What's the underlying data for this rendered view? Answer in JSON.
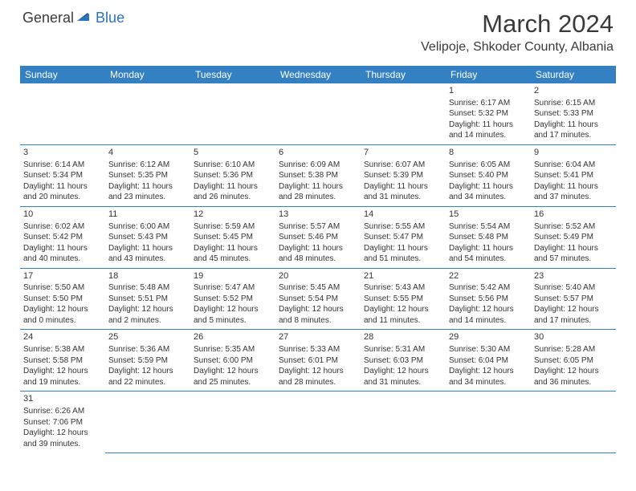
{
  "logo": {
    "text_general": "General",
    "text_blue": "Blue",
    "triangle_color": "#2b73b8"
  },
  "header": {
    "month_title": "March 2024",
    "location": "Velipoje, Shkoder County, Albania"
  },
  "colors": {
    "header_bg": "#3380c2",
    "header_text": "#ffffff",
    "body_text": "#333333",
    "rule": "#3380c2"
  },
  "weekdays": [
    "Sunday",
    "Monday",
    "Tuesday",
    "Wednesday",
    "Thursday",
    "Friday",
    "Saturday"
  ],
  "weeks": [
    [
      null,
      null,
      null,
      null,
      null,
      {
        "n": "1",
        "sr": "Sunrise: 6:17 AM",
        "ss": "Sunset: 5:32 PM",
        "d1": "Daylight: 11 hours",
        "d2": "and 14 minutes."
      },
      {
        "n": "2",
        "sr": "Sunrise: 6:15 AM",
        "ss": "Sunset: 5:33 PM",
        "d1": "Daylight: 11 hours",
        "d2": "and 17 minutes."
      }
    ],
    [
      {
        "n": "3",
        "sr": "Sunrise: 6:14 AM",
        "ss": "Sunset: 5:34 PM",
        "d1": "Daylight: 11 hours",
        "d2": "and 20 minutes."
      },
      {
        "n": "4",
        "sr": "Sunrise: 6:12 AM",
        "ss": "Sunset: 5:35 PM",
        "d1": "Daylight: 11 hours",
        "d2": "and 23 minutes."
      },
      {
        "n": "5",
        "sr": "Sunrise: 6:10 AM",
        "ss": "Sunset: 5:36 PM",
        "d1": "Daylight: 11 hours",
        "d2": "and 26 minutes."
      },
      {
        "n": "6",
        "sr": "Sunrise: 6:09 AM",
        "ss": "Sunset: 5:38 PM",
        "d1": "Daylight: 11 hours",
        "d2": "and 28 minutes."
      },
      {
        "n": "7",
        "sr": "Sunrise: 6:07 AM",
        "ss": "Sunset: 5:39 PM",
        "d1": "Daylight: 11 hours",
        "d2": "and 31 minutes."
      },
      {
        "n": "8",
        "sr": "Sunrise: 6:05 AM",
        "ss": "Sunset: 5:40 PM",
        "d1": "Daylight: 11 hours",
        "d2": "and 34 minutes."
      },
      {
        "n": "9",
        "sr": "Sunrise: 6:04 AM",
        "ss": "Sunset: 5:41 PM",
        "d1": "Daylight: 11 hours",
        "d2": "and 37 minutes."
      }
    ],
    [
      {
        "n": "10",
        "sr": "Sunrise: 6:02 AM",
        "ss": "Sunset: 5:42 PM",
        "d1": "Daylight: 11 hours",
        "d2": "and 40 minutes."
      },
      {
        "n": "11",
        "sr": "Sunrise: 6:00 AM",
        "ss": "Sunset: 5:43 PM",
        "d1": "Daylight: 11 hours",
        "d2": "and 43 minutes."
      },
      {
        "n": "12",
        "sr": "Sunrise: 5:59 AM",
        "ss": "Sunset: 5:45 PM",
        "d1": "Daylight: 11 hours",
        "d2": "and 45 minutes."
      },
      {
        "n": "13",
        "sr": "Sunrise: 5:57 AM",
        "ss": "Sunset: 5:46 PM",
        "d1": "Daylight: 11 hours",
        "d2": "and 48 minutes."
      },
      {
        "n": "14",
        "sr": "Sunrise: 5:55 AM",
        "ss": "Sunset: 5:47 PM",
        "d1": "Daylight: 11 hours",
        "d2": "and 51 minutes."
      },
      {
        "n": "15",
        "sr": "Sunrise: 5:54 AM",
        "ss": "Sunset: 5:48 PM",
        "d1": "Daylight: 11 hours",
        "d2": "and 54 minutes."
      },
      {
        "n": "16",
        "sr": "Sunrise: 5:52 AM",
        "ss": "Sunset: 5:49 PM",
        "d1": "Daylight: 11 hours",
        "d2": "and 57 minutes."
      }
    ],
    [
      {
        "n": "17",
        "sr": "Sunrise: 5:50 AM",
        "ss": "Sunset: 5:50 PM",
        "d1": "Daylight: 12 hours",
        "d2": "and 0 minutes."
      },
      {
        "n": "18",
        "sr": "Sunrise: 5:48 AM",
        "ss": "Sunset: 5:51 PM",
        "d1": "Daylight: 12 hours",
        "d2": "and 2 minutes."
      },
      {
        "n": "19",
        "sr": "Sunrise: 5:47 AM",
        "ss": "Sunset: 5:52 PM",
        "d1": "Daylight: 12 hours",
        "d2": "and 5 minutes."
      },
      {
        "n": "20",
        "sr": "Sunrise: 5:45 AM",
        "ss": "Sunset: 5:54 PM",
        "d1": "Daylight: 12 hours",
        "d2": "and 8 minutes."
      },
      {
        "n": "21",
        "sr": "Sunrise: 5:43 AM",
        "ss": "Sunset: 5:55 PM",
        "d1": "Daylight: 12 hours",
        "d2": "and 11 minutes."
      },
      {
        "n": "22",
        "sr": "Sunrise: 5:42 AM",
        "ss": "Sunset: 5:56 PM",
        "d1": "Daylight: 12 hours",
        "d2": "and 14 minutes."
      },
      {
        "n": "23",
        "sr": "Sunrise: 5:40 AM",
        "ss": "Sunset: 5:57 PM",
        "d1": "Daylight: 12 hours",
        "d2": "and 17 minutes."
      }
    ],
    [
      {
        "n": "24",
        "sr": "Sunrise: 5:38 AM",
        "ss": "Sunset: 5:58 PM",
        "d1": "Daylight: 12 hours",
        "d2": "and 19 minutes."
      },
      {
        "n": "25",
        "sr": "Sunrise: 5:36 AM",
        "ss": "Sunset: 5:59 PM",
        "d1": "Daylight: 12 hours",
        "d2": "and 22 minutes."
      },
      {
        "n": "26",
        "sr": "Sunrise: 5:35 AM",
        "ss": "Sunset: 6:00 PM",
        "d1": "Daylight: 12 hours",
        "d2": "and 25 minutes."
      },
      {
        "n": "27",
        "sr": "Sunrise: 5:33 AM",
        "ss": "Sunset: 6:01 PM",
        "d1": "Daylight: 12 hours",
        "d2": "and 28 minutes."
      },
      {
        "n": "28",
        "sr": "Sunrise: 5:31 AM",
        "ss": "Sunset: 6:03 PM",
        "d1": "Daylight: 12 hours",
        "d2": "and 31 minutes."
      },
      {
        "n": "29",
        "sr": "Sunrise: 5:30 AM",
        "ss": "Sunset: 6:04 PM",
        "d1": "Daylight: 12 hours",
        "d2": "and 34 minutes."
      },
      {
        "n": "30",
        "sr": "Sunrise: 5:28 AM",
        "ss": "Sunset: 6:05 PM",
        "d1": "Daylight: 12 hours",
        "d2": "and 36 minutes."
      }
    ],
    [
      {
        "n": "31",
        "sr": "Sunrise: 6:26 AM",
        "ss": "Sunset: 7:06 PM",
        "d1": "Daylight: 12 hours",
        "d2": "and 39 minutes."
      },
      null,
      null,
      null,
      null,
      null,
      null
    ]
  ]
}
